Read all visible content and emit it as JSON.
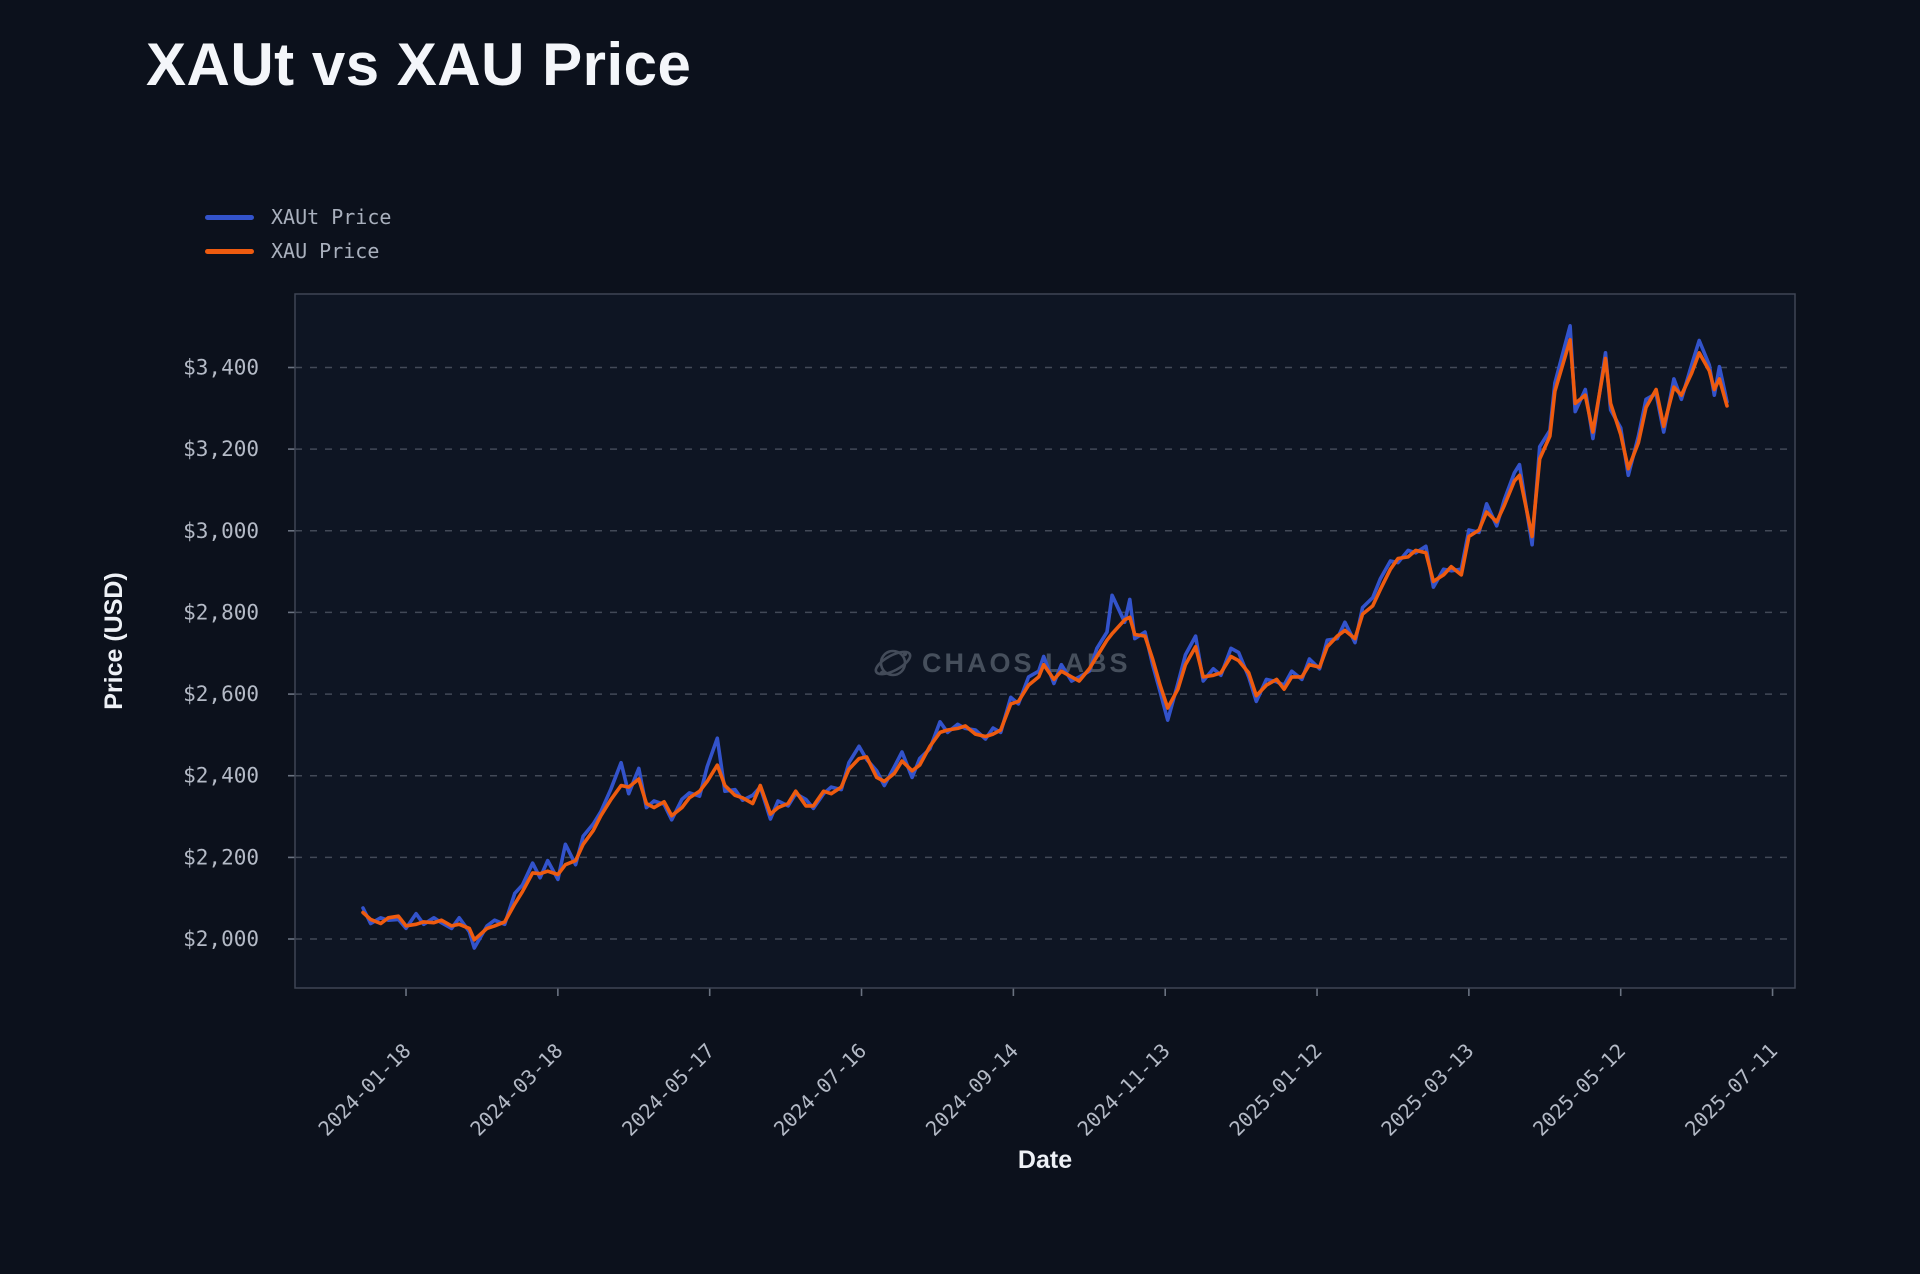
{
  "page": {
    "background": "#0c111c"
  },
  "chart_data": {
    "type": "line",
    "title": "XAUt vs XAU Price",
    "xlabel": "Date",
    "ylabel": "Price (USD)",
    "watermark": "CHAOS LABS",
    "legend_position": "upper-left",
    "grid": "horizontal dashed",
    "ylim": [
      1880,
      3580
    ],
    "y_ticks": [
      2000,
      2200,
      2400,
      2600,
      2800,
      3000,
      3200,
      3400
    ],
    "y_tick_labels": [
      "$2,000",
      "$2,200",
      "$2,400",
      "$2,600",
      "$2,800",
      "$3,000",
      "$3,200",
      "$3,400"
    ],
    "x_ticks": [
      "2024-01-18",
      "2024-03-18",
      "2024-05-17",
      "2024-07-16",
      "2024-09-14",
      "2024-11-13",
      "2025-01-12",
      "2025-03-13",
      "2025-05-12",
      "2025-07-11"
    ],
    "dates": [
      "2024-01-01",
      "2024-01-04",
      "2024-01-08",
      "2024-01-11",
      "2024-01-15",
      "2024-01-18",
      "2024-01-22",
      "2024-01-25",
      "2024-01-29",
      "2024-02-01",
      "2024-02-05",
      "2024-02-08",
      "2024-02-12",
      "2024-02-14",
      "2024-02-19",
      "2024-02-22",
      "2024-02-26",
      "2024-03-01",
      "2024-03-04",
      "2024-03-08",
      "2024-03-11",
      "2024-03-14",
      "2024-03-18",
      "2024-03-21",
      "2024-03-25",
      "2024-03-28",
      "2024-04-01",
      "2024-04-04",
      "2024-04-08",
      "2024-04-12",
      "2024-04-15",
      "2024-04-19",
      "2024-04-22",
      "2024-04-25",
      "2024-04-29",
      "2024-05-02",
      "2024-05-06",
      "2024-05-09",
      "2024-05-13",
      "2024-05-16",
      "2024-05-20",
      "2024-05-23",
      "2024-05-27",
      "2024-05-30",
      "2024-06-03",
      "2024-06-06",
      "2024-06-10",
      "2024-06-13",
      "2024-06-17",
      "2024-06-20",
      "2024-06-24",
      "2024-06-27",
      "2024-07-01",
      "2024-07-04",
      "2024-07-08",
      "2024-07-11",
      "2024-07-15",
      "2024-07-18",
      "2024-07-22",
      "2024-07-25",
      "2024-07-29",
      "2024-08-01",
      "2024-08-05",
      "2024-08-08",
      "2024-08-12",
      "2024-08-16",
      "2024-08-19",
      "2024-08-23",
      "2024-08-26",
      "2024-08-30",
      "2024-09-03",
      "2024-09-06",
      "2024-09-09",
      "2024-09-13",
      "2024-09-16",
      "2024-09-20",
      "2024-09-24",
      "2024-09-26",
      "2024-09-30",
      "2024-10-03",
      "2024-10-07",
      "2024-10-10",
      "2024-10-14",
      "2024-10-17",
      "2024-10-21",
      "2024-10-23",
      "2024-10-28",
      "2024-10-30",
      "2024-11-01",
      "2024-11-05",
      "2024-11-08",
      "2024-11-11",
      "2024-11-14",
      "2024-11-18",
      "2024-11-21",
      "2024-11-25",
      "2024-11-28",
      "2024-12-02",
      "2024-12-05",
      "2024-12-09",
      "2024-12-12",
      "2024-12-16",
      "2024-12-19",
      "2024-12-23",
      "2024-12-27",
      "2024-12-30",
      "2025-01-02",
      "2025-01-06",
      "2025-01-09",
      "2025-01-13",
      "2025-01-16",
      "2025-01-20",
      "2025-01-23",
      "2025-01-27",
      "2025-01-30",
      "2025-02-03",
      "2025-02-06",
      "2025-02-10",
      "2025-02-13",
      "2025-02-17",
      "2025-02-20",
      "2025-02-24",
      "2025-02-27",
      "2025-03-03",
      "2025-03-06",
      "2025-03-10",
      "2025-03-13",
      "2025-03-17",
      "2025-03-20",
      "2025-03-24",
      "2025-03-27",
      "2025-03-31",
      "2025-04-02",
      "2025-04-07",
      "2025-04-10",
      "2025-04-14",
      "2025-04-16",
      "2025-04-22",
      "2025-04-24",
      "2025-04-28",
      "2025-05-01",
      "2025-05-06",
      "2025-05-08",
      "2025-05-12",
      "2025-05-15",
      "2025-05-19",
      "2025-05-22",
      "2025-05-26",
      "2025-05-29",
      "2025-06-02",
      "2025-06-05",
      "2025-06-09",
      "2025-06-12",
      "2025-06-16",
      "2025-06-18",
      "2025-06-20",
      "2025-06-23"
    ],
    "series": [
      {
        "name": "XAUt Price",
        "color": "#3353cb",
        "values": [
          2076,
          2038,
          2052,
          2046,
          2048,
          2026,
          2062,
          2036,
          2052,
          2040,
          2026,
          2052,
          2018,
          1978,
          2032,
          2046,
          2036,
          2112,
          2132,
          2186,
          2150,
          2192,
          2146,
          2232,
          2182,
          2252,
          2282,
          2312,
          2368,
          2432,
          2356,
          2418,
          2322,
          2338,
          2330,
          2292,
          2342,
          2358,
          2350,
          2422,
          2492,
          2362,
          2366,
          2340,
          2352,
          2372,
          2294,
          2338,
          2326,
          2356,
          2342,
          2320,
          2356,
          2372,
          2366,
          2432,
          2472,
          2440,
          2412,
          2376,
          2422,
          2458,
          2396,
          2442,
          2466,
          2532,
          2506,
          2526,
          2516,
          2512,
          2490,
          2517,
          2506,
          2592,
          2576,
          2642,
          2656,
          2692,
          2626,
          2672,
          2632,
          2642,
          2656,
          2712,
          2752,
          2842,
          2776,
          2832,
          2736,
          2752,
          2672,
          2606,
          2536,
          2626,
          2696,
          2742,
          2632,
          2662,
          2646,
          2712,
          2702,
          2642,
          2582,
          2636,
          2630,
          2622,
          2656,
          2636,
          2686,
          2662,
          2732,
          2736,
          2776,
          2726,
          2812,
          2836,
          2882,
          2926,
          2922,
          2952,
          2946,
          2962,
          2862,
          2906,
          2902,
          2906,
          3002,
          2996,
          3066,
          3012,
          3076,
          3142,
          3162,
          2966,
          3206,
          3246,
          3362,
          3502,
          3292,
          3346,
          3226,
          3436,
          3296,
          3252,
          3136,
          3232,
          3322,
          3336,
          3242,
          3372,
          3322,
          3406,
          3466,
          3406,
          3332,
          3402,
          3316
        ]
      },
      {
        "name": "XAU Price",
        "color": "#ee5b0f",
        "values": [
          2065,
          2048,
          2038,
          2052,
          2056,
          2032,
          2036,
          2042,
          2040,
          2046,
          2032,
          2036,
          2026,
          1998,
          2026,
          2032,
          2042,
          2086,
          2116,
          2162,
          2160,
          2166,
          2158,
          2182,
          2192,
          2232,
          2266,
          2302,
          2342,
          2376,
          2372,
          2392,
          2332,
          2322,
          2336,
          2302,
          2322,
          2346,
          2362,
          2386,
          2426,
          2376,
          2352,
          2346,
          2332,
          2376,
          2306,
          2322,
          2332,
          2362,
          2326,
          2326,
          2362,
          2356,
          2372,
          2416,
          2442,
          2446,
          2396,
          2386,
          2406,
          2436,
          2412,
          2426,
          2472,
          2506,
          2512,
          2516,
          2522,
          2502,
          2496,
          2502,
          2512,
          2576,
          2582,
          2622,
          2642,
          2672,
          2636,
          2656,
          2642,
          2632,
          2662,
          2692,
          2732,
          2748,
          2782,
          2788,
          2746,
          2742,
          2686,
          2622,
          2566,
          2612,
          2672,
          2716,
          2642,
          2646,
          2652,
          2692,
          2682,
          2652,
          2596,
          2622,
          2636,
          2612,
          2642,
          2642,
          2672,
          2666,
          2716,
          2742,
          2756,
          2736,
          2796,
          2816,
          2856,
          2906,
          2932,
          2936,
          2952,
          2946,
          2876,
          2892,
          2912,
          2892,
          2986,
          3002,
          3046,
          3022,
          3062,
          3122,
          3136,
          2986,
          3176,
          3232,
          3342,
          3468,
          3312,
          3332,
          3242,
          3422,
          3312,
          3236,
          3152,
          3216,
          3302,
          3346,
          3256,
          3352,
          3332,
          3386,
          3436,
          3392,
          3346,
          3372,
          3306
        ]
      }
    ]
  }
}
